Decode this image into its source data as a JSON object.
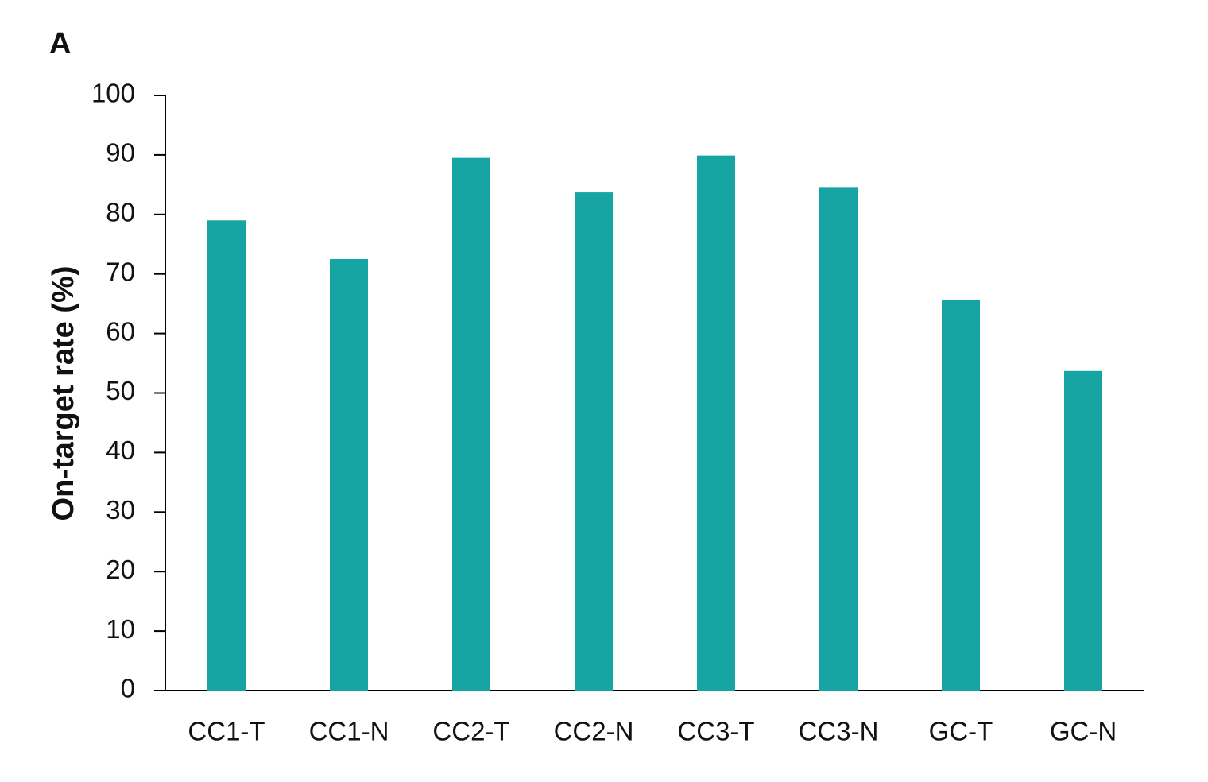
{
  "chart_data": {
    "type": "bar",
    "panel_label": "A",
    "y_label": "On-target rate (%)",
    "categories": [
      "CC1-T",
      "CC1-N",
      "CC2-T",
      "CC2-N",
      "CC3-T",
      "CC3-N",
      "GC-T",
      "GC-N"
    ],
    "values": [
      79.0,
      72.5,
      89.5,
      83.7,
      89.9,
      84.6,
      65.6,
      53.7
    ],
    "color": "#16a5a3",
    "ylim": [
      0,
      100
    ],
    "yticks": [
      0,
      10,
      20,
      30,
      40,
      50,
      60,
      70,
      80,
      90,
      100
    ],
    "grid": false
  }
}
